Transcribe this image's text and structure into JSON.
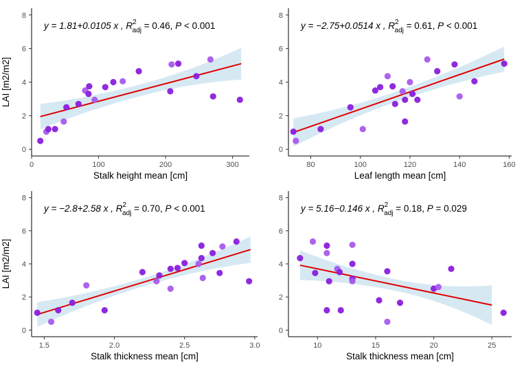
{
  "colors": {
    "point_a": "#8a1fdc",
    "point_b": "#a85bec",
    "fit_line": "#e00000",
    "ci_band": "#d6e9f3"
  },
  "chart_data": [
    {
      "type": "scatter",
      "xlabel": "Stalk height mean [cm]",
      "ylabel": "LAI [m2/m2]",
      "xlim": [
        0,
        325
      ],
      "ylim": [
        -0.4,
        8.4
      ],
      "xticks": [
        0,
        100,
        200,
        300
      ],
      "yticks": [
        0,
        2,
        4,
        6,
        8
      ],
      "equation": {
        "lhs": "y = 1.81+0.0105 x ,",
        "r2_value": "= 0.46,",
        "p_text": "< 0.001"
      },
      "fit": {
        "intercept": 1.81,
        "slope": 0.0105,
        "x_range": [
          13,
          313
        ],
        "ci_halfwidth": [
          0.75,
          0.35,
          0.95
        ]
      },
      "points": [
        {
          "x": 13,
          "y": 0.5
        },
        {
          "x": 22,
          "y": 1.05
        },
        {
          "x": 25,
          "y": 1.2
        },
        {
          "x": 35,
          "y": 1.2
        },
        {
          "x": 48,
          "y": 1.65
        },
        {
          "x": 52,
          "y": 2.5
        },
        {
          "x": 70,
          "y": 2.7
        },
        {
          "x": 80,
          "y": 3.5
        },
        {
          "x": 85,
          "y": 3.3
        },
        {
          "x": 86,
          "y": 3.75
        },
        {
          "x": 94,
          "y": 2.95
        },
        {
          "x": 110,
          "y": 3.7
        },
        {
          "x": 122,
          "y": 4.0
        },
        {
          "x": 136,
          "y": 4.05
        },
        {
          "x": 160,
          "y": 4.65
        },
        {
          "x": 207,
          "y": 3.45
        },
        {
          "x": 209,
          "y": 5.05
        },
        {
          "x": 219,
          "y": 5.1
        },
        {
          "x": 246,
          "y": 4.35
        },
        {
          "x": 267,
          "y": 5.35
        },
        {
          "x": 271,
          "y": 3.15
        },
        {
          "x": 311,
          "y": 2.95
        }
      ]
    },
    {
      "type": "scatter",
      "xlabel": "Leaf length mean [cm]",
      "ylabel": "",
      "xlim": [
        71,
        161
      ],
      "ylim": [
        -0.4,
        8.4
      ],
      "xticks": [
        80,
        100,
        120,
        140,
        160
      ],
      "yticks": [
        0,
        2,
        4,
        6,
        8
      ],
      "equation": {
        "lhs": "y = −2.75+0.0514 x ,",
        "r2_value": "= 0.61,",
        "p_text": "< 0.001"
      },
      "fit": {
        "intercept": -2.75,
        "slope": 0.0514,
        "x_range": [
          73,
          158
        ],
        "ci_halfwidth": [
          0.85,
          0.3,
          0.75
        ]
      },
      "points": [
        {
          "x": 73,
          "y": 1.05
        },
        {
          "x": 74,
          "y": 0.5
        },
        {
          "x": 84,
          "y": 1.2
        },
        {
          "x": 96,
          "y": 2.5
        },
        {
          "x": 101,
          "y": 1.2
        },
        {
          "x": 106,
          "y": 3.5
        },
        {
          "x": 108,
          "y": 3.7
        },
        {
          "x": 111,
          "y": 4.35
        },
        {
          "x": 113,
          "y": 3.75
        },
        {
          "x": 114,
          "y": 2.7
        },
        {
          "x": 117,
          "y": 3.45
        },
        {
          "x": 118,
          "y": 2.95
        },
        {
          "x": 118,
          "y": 1.65
        },
        {
          "x": 120,
          "y": 4.0
        },
        {
          "x": 121,
          "y": 3.3
        },
        {
          "x": 123,
          "y": 2.95
        },
        {
          "x": 127,
          "y": 5.35
        },
        {
          "x": 131,
          "y": 4.65
        },
        {
          "x": 138,
          "y": 5.05
        },
        {
          "x": 140,
          "y": 3.15
        },
        {
          "x": 146,
          "y": 4.05
        },
        {
          "x": 158,
          "y": 5.1
        }
      ]
    },
    {
      "type": "scatter",
      "xlabel": "Stalk thickness mean [cm]",
      "ylabel": "LAI [m2/m2]",
      "xlim": [
        1.41,
        3.02
      ],
      "ylim": [
        -0.4,
        8.4
      ],
      "xticks": [
        1.5,
        2.0,
        2.5,
        3.0
      ],
      "xtick_labels": [
        "1.5",
        "2.0",
        "2.5",
        "3.0"
      ],
      "yticks": [
        0,
        2,
        4,
        6,
        8
      ],
      "equation": {
        "lhs": "y = −2.8+2.58 x ,",
        "r2_value": "= 0.70,",
        "p_text": "< 0.001"
      },
      "fit": {
        "intercept": -2.8,
        "slope": 2.58,
        "x_range": [
          1.45,
          2.97
        ],
        "ci_halfwidth": [
          0.75,
          0.25,
          0.8
        ]
      },
      "points": [
        {
          "x": 1.45,
          "y": 1.05
        },
        {
          "x": 1.55,
          "y": 0.5
        },
        {
          "x": 1.6,
          "y": 1.2
        },
        {
          "x": 1.7,
          "y": 1.65
        },
        {
          "x": 1.8,
          "y": 2.7
        },
        {
          "x": 1.93,
          "y": 1.2
        },
        {
          "x": 2.2,
          "y": 3.5
        },
        {
          "x": 2.3,
          "y": 2.95
        },
        {
          "x": 2.32,
          "y": 3.3
        },
        {
          "x": 2.4,
          "y": 3.7
        },
        {
          "x": 2.4,
          "y": 2.5
        },
        {
          "x": 2.45,
          "y": 3.75
        },
        {
          "x": 2.5,
          "y": 4.05
        },
        {
          "x": 2.6,
          "y": 4.0
        },
        {
          "x": 2.62,
          "y": 5.1
        },
        {
          "x": 2.62,
          "y": 4.35
        },
        {
          "x": 2.63,
          "y": 3.15
        },
        {
          "x": 2.7,
          "y": 4.65
        },
        {
          "x": 2.75,
          "y": 3.45
        },
        {
          "x": 2.77,
          "y": 5.05
        },
        {
          "x": 2.87,
          "y": 5.35
        },
        {
          "x": 2.96,
          "y": 2.95
        }
      ]
    },
    {
      "type": "scatter",
      "xlabel": "Stalk thickness mean [cm]",
      "ylabel": "",
      "xlim": [
        7.5,
        26.7
      ],
      "ylim": [
        -0.4,
        8.4
      ],
      "xticks": [
        10,
        15,
        20,
        25
      ],
      "yticks": [
        0,
        2,
        4,
        6,
        8
      ],
      "equation": {
        "lhs": "y = 5.16−0.146 x ,",
        "r2_value": "= 0.18,",
        "p_text": "= 0.029"
      },
      "fit": {
        "intercept": 5.16,
        "slope": -0.146,
        "x_range": [
          8.5,
          25
        ],
        "ci_halfwidth": [
          0.9,
          0.35,
          1.2
        ]
      },
      "points": [
        {
          "x": 8.5,
          "y": 4.35
        },
        {
          "x": 9.6,
          "y": 5.35
        },
        {
          "x": 9.8,
          "y": 3.45
        },
        {
          "x": 10.8,
          "y": 5.1
        },
        {
          "x": 10.8,
          "y": 4.65
        },
        {
          "x": 10.8,
          "y": 1.2
        },
        {
          "x": 11.0,
          "y": 2.95
        },
        {
          "x": 11.7,
          "y": 3.7
        },
        {
          "x": 11.9,
          "y": 3.5
        },
        {
          "x": 12.0,
          "y": 1.2
        },
        {
          "x": 13.0,
          "y": 5.15
        },
        {
          "x": 13.0,
          "y": 4.0
        },
        {
          "x": 13.0,
          "y": 3.1
        },
        {
          "x": 13.0,
          "y": 2.95
        },
        {
          "x": 15.3,
          "y": 1.8
        },
        {
          "x": 16.0,
          "y": 3.55
        },
        {
          "x": 16.0,
          "y": 0.5
        },
        {
          "x": 17.1,
          "y": 1.65
        },
        {
          "x": 20.0,
          "y": 2.5
        },
        {
          "x": 20.4,
          "y": 2.6
        },
        {
          "x": 21.5,
          "y": 3.7
        },
        {
          "x": 26.0,
          "y": 1.05
        }
      ]
    }
  ]
}
